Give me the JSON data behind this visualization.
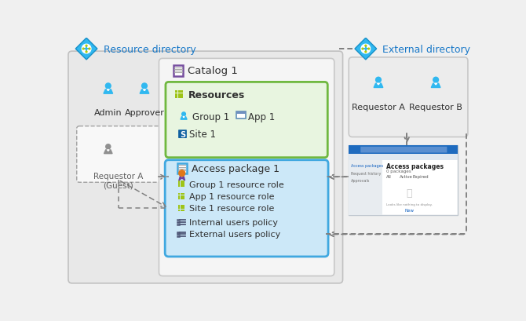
{
  "resource_dir_label": "Resource directory",
  "external_dir_label": "External directory",
  "catalog_label": "Catalog 1",
  "resources_label": "Resources",
  "group1_label": "Group 1",
  "app1_label": "App 1",
  "site1_label": "Site 1",
  "access_pkg_label": "Access package 1",
  "items": [
    "Group 1 resource role",
    "App 1 resource role",
    "Site 1 resource role",
    "Internal users policy",
    "External users policy"
  ],
  "admin_label": "Admin",
  "approver_label": "Approver",
  "requestor_a_guest_label": "Requestor A\n(Guest)",
  "requestor_a_label": "Requestor A",
  "requestor_b_label": "Requestor B",
  "bg_color": "#f0f0f0",
  "main_box_color": "#e8e8e8",
  "main_box_edge": "#c0c0c0",
  "catalog_box_color": "#f5f5f5",
  "catalog_box_edge": "#c8c8c8",
  "resource_box_color": "#e8f5e0",
  "resource_box_edge": "#70b840",
  "access_box_color": "#cce8f8",
  "access_box_edge": "#40a8e0",
  "external_box_color": "#ececec",
  "external_box_edge": "#c8c8c8",
  "guest_box_edge": "#a0a0a0",
  "diamond_fill": "#30b8f0",
  "diamond_edge": "#1890c8",
  "person_blue": "#30b8f0",
  "person_gray": "#909090",
  "grid_color": "#9ec417",
  "lines_color": "#505878",
  "arrow_color": "#808080",
  "text_blue": "#1878c8",
  "text_dark": "#303030",
  "text_mid": "#505050",
  "purple_border": "#7850a0",
  "blue_border": "#40a8e0",
  "browser_blue": "#1e6bbf",
  "browser_bg": "#f4f6f8",
  "browser_sidebar": "#e8ecf0"
}
